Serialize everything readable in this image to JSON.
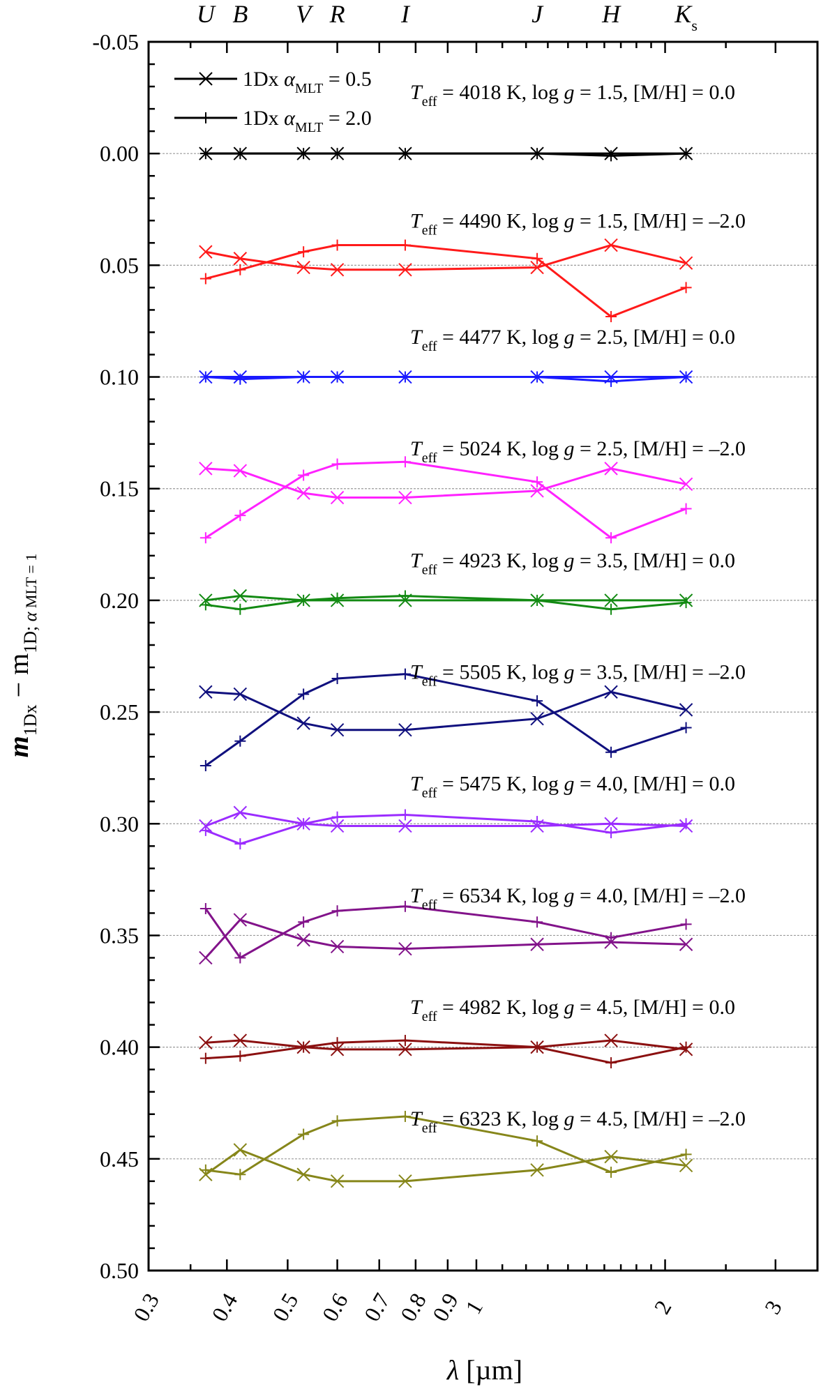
{
  "chart_data": {
    "type": "line",
    "x_scale": "log",
    "y_inverted": true,
    "xlim": [
      0.3,
      3.5
    ],
    "ylim": [
      -0.05,
      0.5
    ],
    "xlabel": {
      "symbol": "λ",
      "unit": "[µm]"
    },
    "ylabel": {
      "main": "m",
      "sub1": "1Dx",
      "minus": " − m",
      "sub2": "1D; ",
      "sub2alpha": "α",
      "sub2rest": " MLT = 1"
    },
    "x_ticks": [
      0.3,
      0.4,
      0.5,
      0.6,
      0.7,
      0.8,
      0.9,
      1,
      2,
      3
    ],
    "x_tick_labels": [
      "0.3",
      "0.4",
      "0.5",
      "0.6",
      "0.7",
      "0.8",
      "0.9",
      "1",
      "2",
      "3"
    ],
    "y_ticks": [
      -0.05,
      0.0,
      0.05,
      0.1,
      0.15,
      0.2,
      0.25,
      0.3,
      0.35,
      0.4,
      0.45,
      0.5
    ],
    "y_tick_labels": [
      "-0.05",
      "0.00",
      "0.05",
      "0.10",
      "0.15",
      "0.20",
      "0.25",
      "0.30",
      "0.35",
      "0.40",
      "0.45",
      "0.50"
    ],
    "bands": [
      {
        "name": "U",
        "sub": "",
        "x": 0.37
      },
      {
        "name": "B",
        "sub": "",
        "x": 0.42
      },
      {
        "name": "V",
        "sub": "",
        "x": 0.53
      },
      {
        "name": "R",
        "sub": "",
        "x": 0.6
      },
      {
        "name": "I",
        "sub": "",
        "x": 0.77
      },
      {
        "name": "J",
        "sub": "",
        "x": 1.25
      },
      {
        "name": "H",
        "sub": "",
        "x": 1.64
      },
      {
        "name": "K",
        "sub": "s",
        "x": 2.16
      }
    ],
    "wavelengths": [
      0.37,
      0.42,
      0.53,
      0.6,
      0.77,
      1.25,
      1.64,
      2.16
    ],
    "legend": [
      {
        "marker": "x",
        "text": "1Dx ",
        "alpha": "α",
        "sub": "MLT",
        "value": " = 0.5"
      },
      {
        "marker": "+",
        "text": "1Dx ",
        "alpha": "α",
        "sub": "MLT",
        "value": " = 2.0"
      }
    ],
    "grid_lines": [
      0.0,
      0.05,
      0.1,
      0.15,
      0.2,
      0.25,
      0.3,
      0.35,
      0.4,
      0.45
    ],
    "models": [
      {
        "color": "#000000",
        "label_teff": "4018",
        "label_rest": " K, log ",
        "label_g": "g",
        "label_end": " = 1.5, [M/H] = 0.0",
        "alpha05": [
          0.0,
          0.0,
          0.0,
          0.0,
          0.0,
          0.0,
          0.0,
          0.0
        ],
        "alpha20": [
          0.0,
          0.0,
          0.0,
          0.0,
          0.0,
          0.0,
          0.001,
          0.0
        ]
      },
      {
        "color": "#ff1a1a",
        "label_teff": "4490",
        "label_rest": " K, log ",
        "label_g": "g",
        "label_end": " = 1.5, [M/H] = –2.0",
        "alpha05": [
          0.044,
          0.047,
          0.051,
          0.052,
          0.052,
          0.051,
          0.041,
          0.049
        ],
        "alpha20": [
          0.056,
          0.052,
          0.044,
          0.041,
          0.041,
          0.047,
          0.073,
          0.06
        ]
      },
      {
        "color": "#1a1aff",
        "label_teff": "4477",
        "label_rest": " K, log ",
        "label_g": "g",
        "label_end": " = 2.5, [M/H] = 0.0",
        "alpha05": [
          0.1,
          0.1,
          0.1,
          0.1,
          0.1,
          0.1,
          0.1,
          0.1
        ],
        "alpha20": [
          0.1,
          0.101,
          0.1,
          0.1,
          0.1,
          0.1,
          0.102,
          0.1
        ]
      },
      {
        "color": "#ff22ff",
        "label_teff": "5024",
        "label_rest": " K, log ",
        "label_g": "g",
        "label_end": " = 2.5, [M/H] = –2.0",
        "alpha05": [
          0.141,
          0.142,
          0.152,
          0.154,
          0.154,
          0.151,
          0.141,
          0.148
        ],
        "alpha20": [
          0.172,
          0.162,
          0.144,
          0.139,
          0.138,
          0.147,
          0.172,
          0.159
        ]
      },
      {
        "color": "#138a13",
        "label_teff": "4923",
        "label_rest": " K, log ",
        "label_g": "g",
        "label_end": " = 3.5, [M/H] = 0.0",
        "alpha05": [
          0.2,
          0.198,
          0.2,
          0.2,
          0.2,
          0.2,
          0.2,
          0.2
        ],
        "alpha20": [
          0.202,
          0.204,
          0.2,
          0.199,
          0.198,
          0.2,
          0.204,
          0.201
        ]
      },
      {
        "color": "#10107e",
        "label_teff": "5505",
        "label_rest": " K, log ",
        "label_g": "g",
        "label_end": " = 3.5, [M/H] = –2.0",
        "alpha05": [
          0.241,
          0.242,
          0.255,
          0.258,
          0.258,
          0.253,
          0.241,
          0.249
        ],
        "alpha20": [
          0.274,
          0.263,
          0.242,
          0.235,
          0.233,
          0.245,
          0.268,
          0.257
        ]
      },
      {
        "color": "#9b2cff",
        "label_teff": "5475",
        "label_rest": " K, log ",
        "label_g": "g",
        "label_end": " = 4.0, [M/H] = 0.0",
        "alpha05": [
          0.301,
          0.295,
          0.3,
          0.301,
          0.301,
          0.301,
          0.3,
          0.301
        ],
        "alpha20": [
          0.303,
          0.309,
          0.3,
          0.297,
          0.296,
          0.299,
          0.304,
          0.3
        ]
      },
      {
        "color": "#82138a",
        "label_teff": "6534",
        "label_rest": " K, log ",
        "label_g": "g",
        "label_end": " = 4.0, [M/H] = –2.0",
        "alpha05": [
          0.36,
          0.343,
          0.352,
          0.355,
          0.356,
          0.354,
          0.353,
          0.354
        ],
        "alpha20": [
          0.338,
          0.36,
          0.344,
          0.339,
          0.337,
          0.344,
          0.351,
          0.345
        ]
      },
      {
        "color": "#8b1010",
        "label_teff": "4982",
        "label_rest": " K, log ",
        "label_g": "g",
        "label_end": " = 4.5, [M/H] = 0.0",
        "alpha05": [
          0.398,
          0.397,
          0.4,
          0.401,
          0.401,
          0.4,
          0.397,
          0.401
        ],
        "alpha20": [
          0.405,
          0.404,
          0.4,
          0.398,
          0.397,
          0.4,
          0.407,
          0.4
        ]
      },
      {
        "color": "#86861a",
        "label_teff": "6323",
        "label_rest": " K, log ",
        "label_g": "g",
        "label_end": " = 4.5, [M/H] = –2.0",
        "alpha05": [
          0.457,
          0.446,
          0.457,
          0.46,
          0.46,
          0.455,
          0.449,
          0.453
        ],
        "alpha20": [
          0.455,
          0.457,
          0.439,
          0.433,
          0.431,
          0.442,
          0.456,
          0.448
        ]
      }
    ]
  }
}
